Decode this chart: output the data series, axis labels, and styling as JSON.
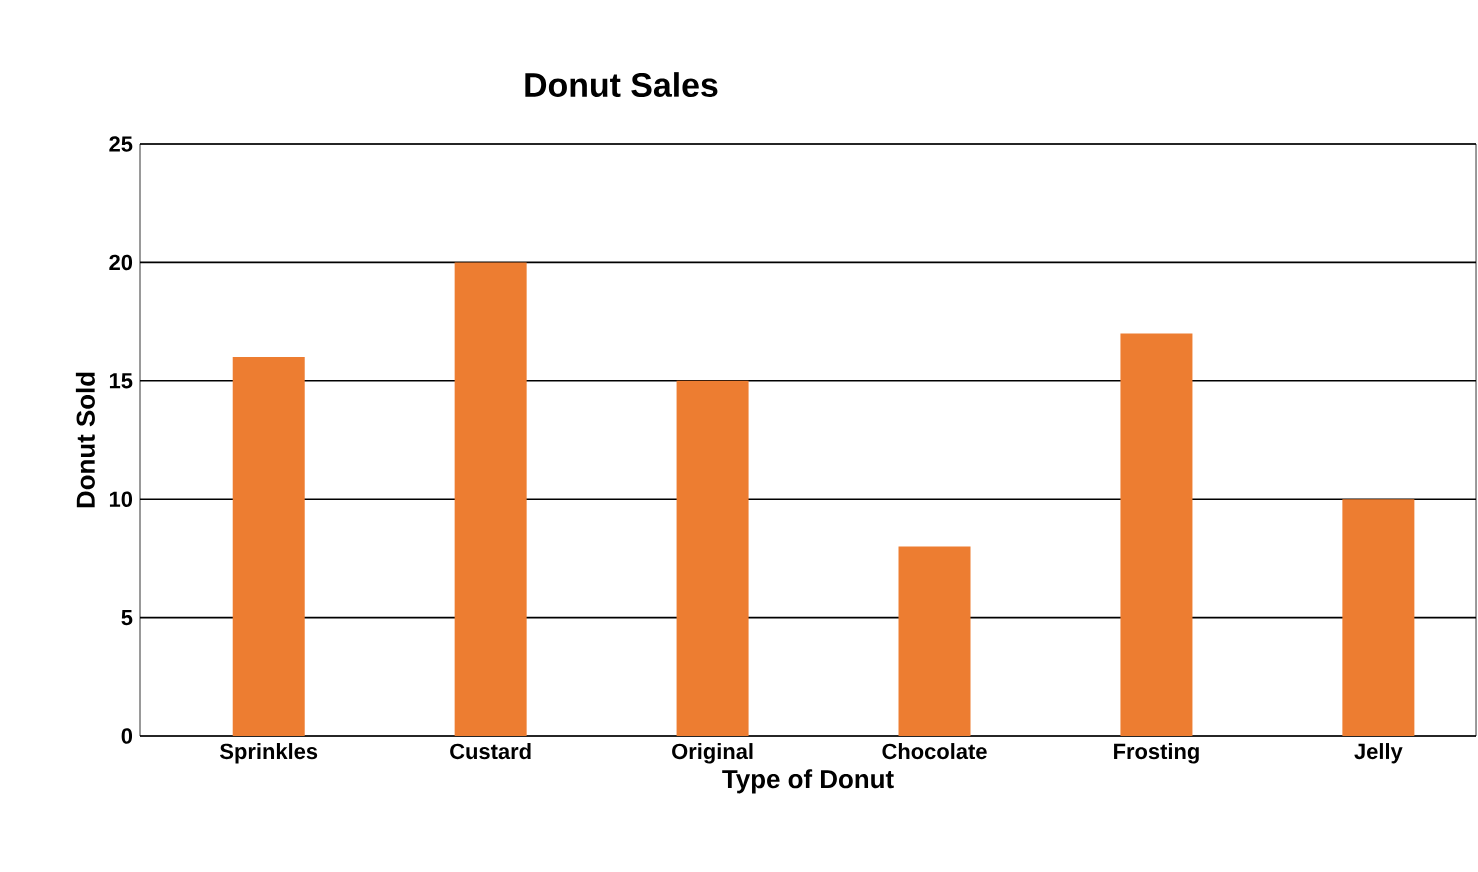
{
  "chart_data": {
    "type": "bar",
    "title": "Donut Sales",
    "xlabel": "Type of Donut",
    "ylabel": "Donut Sold",
    "categories": [
      "Sprinkles",
      "Custard",
      "Original",
      "Chocolate",
      "Frosting",
      "Jelly"
    ],
    "values": [
      16,
      20,
      15,
      8,
      17,
      10
    ],
    "color": "#ed7d31",
    "ylim": [
      0,
      25
    ],
    "yticks": [
      0,
      5,
      10,
      15,
      20,
      25
    ],
    "grid": "y"
  }
}
